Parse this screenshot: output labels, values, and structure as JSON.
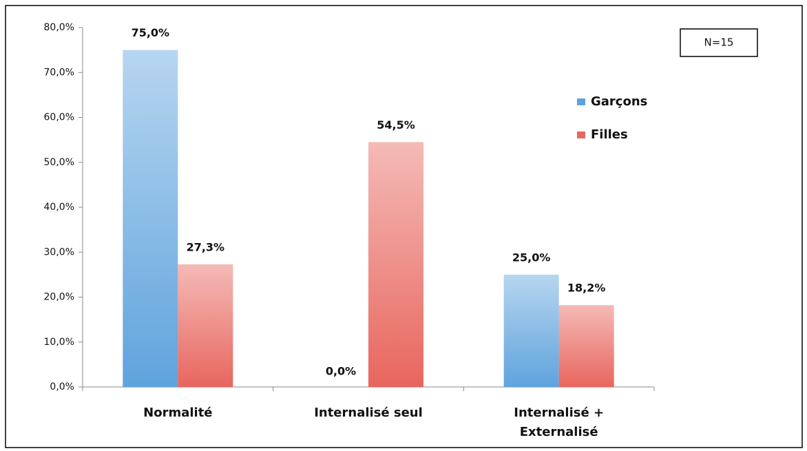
{
  "chart_data": {
    "type": "bar",
    "categories": [
      "Normalité",
      "Internalisé seul",
      "Internalisé + Externalisé"
    ],
    "series": [
      {
        "name": "Garçons",
        "color": "#5fa3dd",
        "values": [
          75.0,
          0.0,
          25.0
        ],
        "value_labels": [
          "75,0%",
          "0,0%",
          "25,0%"
        ]
      },
      {
        "name": "Filles",
        "color": "#e8665e",
        "values": [
          27.3,
          54.5,
          18.2
        ],
        "value_labels": [
          "27,3%",
          "54,5%",
          "18,2%"
        ]
      }
    ],
    "ylim": [
      0,
      80
    ],
    "yticks": [
      {
        "value": 0,
        "label": "0,0%"
      },
      {
        "value": 10,
        "label": "10,0%"
      },
      {
        "value": 20,
        "label": "20,0%"
      },
      {
        "value": 30,
        "label": "30,0%"
      },
      {
        "value": 40,
        "label": "40,0%"
      },
      {
        "value": 50,
        "label": "50,0%"
      },
      {
        "value": 60,
        "label": "60,0%"
      },
      {
        "value": 70,
        "label": "70,0%"
      },
      {
        "value": 80,
        "label": "80,0%"
      }
    ],
    "annotation": "N=15",
    "grid": false,
    "legend": "right"
  }
}
